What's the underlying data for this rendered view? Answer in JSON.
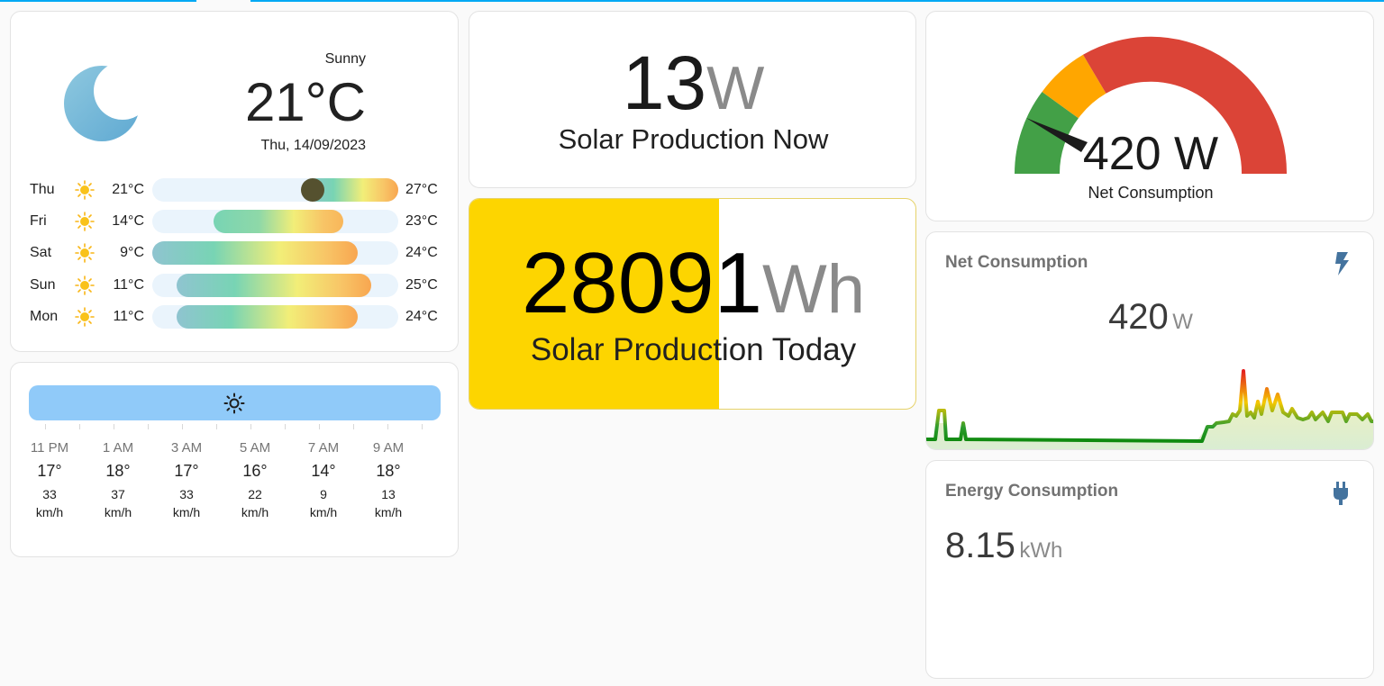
{
  "weather": {
    "condition": "Sunny",
    "temperature": "21°C",
    "date": "Thu, 14/09/2023",
    "icon": "moon-icon",
    "forecast": [
      {
        "day": "Thu",
        "low": "21°C",
        "high": "27°C",
        "icon": "sun-icon"
      },
      {
        "day": "Fri",
        "low": "14°C",
        "high": "23°C",
        "icon": "sun-icon"
      },
      {
        "day": "Sat",
        "low": "9°C",
        "high": "24°C",
        "icon": "sun-icon"
      },
      {
        "day": "Sun",
        "low": "11°C",
        "high": "25°C",
        "icon": "sun-icon"
      },
      {
        "day": "Mon",
        "low": "11°C",
        "high": "24°C",
        "icon": "sun-icon"
      }
    ]
  },
  "hourly": {
    "condition_icon": "sun-outline-icon",
    "hours": [
      {
        "time": "11 PM",
        "temp": "17°",
        "wind": "33",
        "unit": "km/h"
      },
      {
        "time": "1 AM",
        "temp": "18°",
        "wind": "37",
        "unit": "km/h"
      },
      {
        "time": "3 AM",
        "temp": "17°",
        "wind": "33",
        "unit": "km/h"
      },
      {
        "time": "5 AM",
        "temp": "16°",
        "wind": "22",
        "unit": "km/h"
      },
      {
        "time": "7 AM",
        "temp": "14°",
        "wind": "9",
        "unit": "km/h"
      },
      {
        "time": "9 AM",
        "temp": "18°",
        "wind": "13",
        "unit": "km/h"
      }
    ]
  },
  "solar_now": {
    "value": "13",
    "unit": "W",
    "label": "Solar Production Now"
  },
  "solar_today": {
    "value": "28091",
    "unit": "Wh",
    "label": "Solar Production Today",
    "fill_fraction": 0.56,
    "fill_color": "#fdd500"
  },
  "gauge": {
    "value": "420 W",
    "label": "Net Consumption",
    "colors": {
      "green": "#43a047",
      "orange": "#ffa600",
      "red": "#db4437"
    }
  },
  "net_consumption": {
    "title": "Net Consumption",
    "value": "420",
    "unit": "W",
    "icon": "lightning-bolt-icon"
  },
  "energy_consumption": {
    "title": "Energy Consumption",
    "value": "8.15",
    "unit": "kWh",
    "icon": "power-plug-icon"
  },
  "accent_color": "#03a9f4"
}
